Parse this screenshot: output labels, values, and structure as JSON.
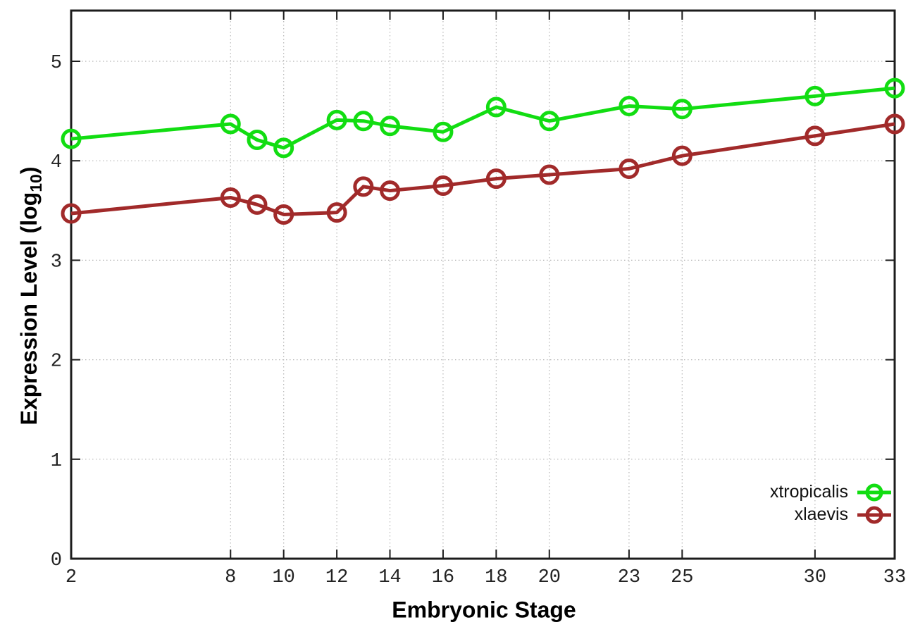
{
  "chart_data": {
    "type": "line",
    "title": "",
    "xlabel": "Embryonic Stage",
    "ylabel": {
      "text": "Expression Level (log",
      "sub": "10",
      "close": ")"
    },
    "ylabel_plain": "Expression Level (log10)",
    "x": [
      2,
      8,
      9,
      10,
      12,
      13,
      14,
      16,
      18,
      20,
      23,
      25,
      30,
      33
    ],
    "series": [
      {
        "name": "xtropicalis",
        "color": "#12dd12",
        "values": [
          4.22,
          4.37,
          4.21,
          4.13,
          4.41,
          4.4,
          4.35,
          4.29,
          4.54,
          4.4,
          4.55,
          4.52,
          4.65,
          4.73
        ]
      },
      {
        "name": "xlaevis",
        "color": "#a12a2a",
        "values": [
          3.47,
          3.63,
          3.56,
          3.46,
          3.48,
          3.74,
          3.7,
          3.75,
          3.82,
          3.86,
          3.92,
          4.05,
          4.25,
          4.37
        ]
      }
    ],
    "xticks": [
      2,
      8,
      10,
      12,
      14,
      16,
      18,
      20,
      23,
      25,
      30,
      33
    ],
    "yticks": [
      0,
      1,
      2,
      3,
      4,
      5
    ],
    "xlim": [
      2,
      33
    ],
    "ylim": [
      0,
      5.51
    ],
    "grid": true,
    "legend_position": "bottom-right",
    "axis_color": "#1c1c1c",
    "grid_color": "#b5b5b5",
    "marker": "open-circle"
  }
}
